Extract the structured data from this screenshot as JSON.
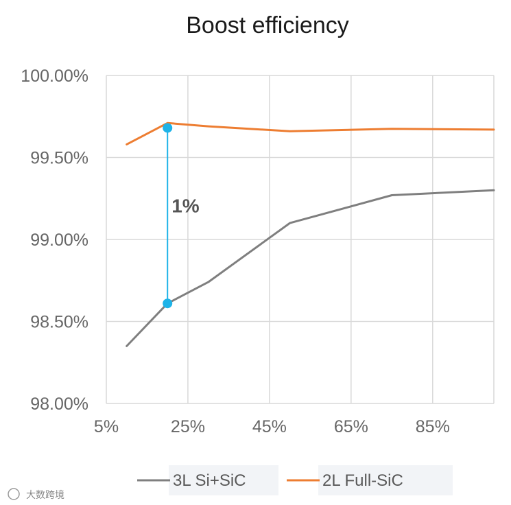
{
  "chart_data": {
    "type": "line",
    "title": "Boost efficiency",
    "xlabel": "",
    "ylabel": "",
    "xlim": [
      5,
      100
    ],
    "ylim": [
      98.0,
      100.0
    ],
    "x_ticks": [
      "5%",
      "25%",
      "45%",
      "65%",
      "85%"
    ],
    "y_ticks": [
      "100.00%",
      "99.50%",
      "99.00%",
      "98.50%",
      "98.00%"
    ],
    "grid": true,
    "legend_position": "bottom",
    "series": [
      {
        "name": "3L Si+SiC",
        "color": "#7f7f7f",
        "x": [
          10,
          20,
          30,
          50,
          75,
          100
        ],
        "y": [
          98.35,
          98.61,
          98.74,
          99.1,
          99.27,
          99.3
        ]
      },
      {
        "name": "2L Full-SiC",
        "color": "#ed7d31",
        "x": [
          10,
          20,
          30,
          50,
          75,
          100
        ],
        "y": [
          99.58,
          99.71,
          99.69,
          99.66,
          99.675,
          99.67
        ]
      }
    ],
    "annotations": [
      {
        "text": "1%",
        "x": 20,
        "y_from": 98.61,
        "y_to": 99.68,
        "color": "#1eb3e8"
      }
    ]
  },
  "watermark": "大数跨境"
}
